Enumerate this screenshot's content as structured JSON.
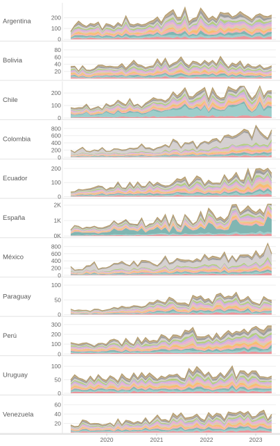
{
  "chart_data": {
    "type": "area",
    "layout": "small-multiples",
    "stacked": true,
    "x_axis": {
      "ticks": [
        "2020",
        "2021",
        "2022",
        "2023"
      ],
      "range": [
        "2019-01",
        "2023-05"
      ]
    },
    "stack_colors": [
      "#e8828a",
      "#8cc6c2",
      "#6aa9a5",
      "#f4a6a0",
      "#f7b15b",
      "#d7c3a1",
      "#e7a4c9",
      "#c2a6d6",
      "#a5c66a",
      "#cfc9c9",
      "#8d8d8d",
      "#b8a07a"
    ],
    "panels": [
      {
        "country": "Argentina",
        "ticks": [
          "0",
          "100",
          "200"
        ],
        "ylim": [
          0,
          300
        ],
        "trend": [
          110,
          130,
          170,
          190,
          210,
          235,
          240,
          235
        ]
      },
      {
        "country": "Bolivia",
        "ticks": [
          "20",
          "40",
          "60",
          "80"
        ],
        "ylim": [
          0,
          90
        ],
        "trend": [
          25,
          30,
          35,
          50,
          48,
          45,
          42,
          40
        ]
      },
      {
        "country": "Chile",
        "ticks": [
          "0",
          "100",
          "200"
        ],
        "ylim": [
          0,
          260
        ],
        "trend": [
          80,
          90,
          120,
          150,
          180,
          200,
          215,
          225
        ]
      },
      {
        "country": "Colombia",
        "ticks": [
          "0",
          "200",
          "400",
          "600",
          "800"
        ],
        "ylim": [
          0,
          900
        ],
        "trend": [
          240,
          250,
          280,
          310,
          360,
          480,
          620,
          780
        ]
      },
      {
        "country": "Ecuador",
        "ticks": [
          "0",
          "100",
          "200"
        ],
        "ylim": [
          0,
          230
        ],
        "trend": [
          40,
          60,
          80,
          90,
          100,
          120,
          140,
          160
        ]
      },
      {
        "country": "España",
        "ticks": [
          "0K",
          "1K",
          "2K"
        ],
        "ylim": [
          0,
          2100
        ],
        "trend": [
          500,
          650,
          800,
          1000,
          1150,
          1350,
          1650,
          1850
        ]
      },
      {
        "country": "México",
        "ticks": [
          "0",
          "200",
          "400",
          "600",
          "800"
        ],
        "ylim": [
          0,
          900
        ],
        "trend": [
          220,
          260,
          320,
          380,
          420,
          500,
          600,
          760
        ]
      },
      {
        "country": "Paraguay",
        "ticks": [
          "0",
          "50",
          "100"
        ],
        "ylim": [
          0,
          110
        ],
        "trend": [
          15,
          15,
          25,
          40,
          50,
          55,
          50,
          48
        ]
      },
      {
        "country": "Perú",
        "ticks": [
          "0",
          "100",
          "200",
          "300"
        ],
        "ylim": [
          0,
          330
        ],
        "trend": [
          90,
          110,
          140,
          170,
          200,
          230,
          255,
          270
        ]
      },
      {
        "country": "Uruguay",
        "ticks": [
          "0",
          "50",
          "100"
        ],
        "ylim": [
          0,
          120
        ],
        "trend": [
          50,
          55,
          60,
          65,
          70,
          75,
          80,
          80
        ]
      },
      {
        "country": "Venezuela",
        "ticks": [
          "20",
          "40",
          "60"
        ],
        "ylim": [
          0,
          70
        ],
        "trend": [
          18,
          20,
          25,
          30,
          35,
          40,
          42,
          40
        ]
      }
    ]
  }
}
